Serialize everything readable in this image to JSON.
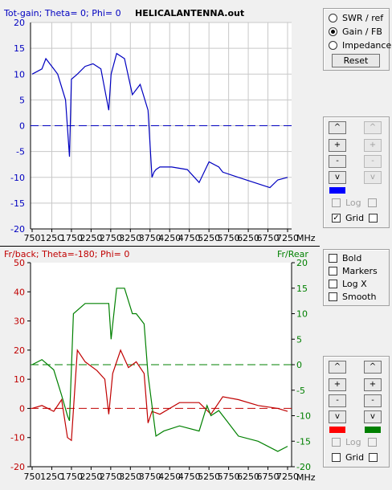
{
  "top_chart": {
    "left_title": "Tot-gain; Theta= 0; Phi= 0",
    "file_title": "HELICALANTENNA.out",
    "left_color": "#0000c0",
    "y_ticks": [
      "20",
      "15",
      "10",
      "5",
      "0",
      "-5",
      "-10",
      "-15",
      "-20"
    ],
    "x_ticks": [
      "750",
      "125C",
      "1750",
      "2250",
      "2750",
      "3250",
      "3750",
      "4250",
      "4750",
      "5250",
      "5750",
      "6250",
      "6750",
      "7250"
    ],
    "x_unit": "MHz"
  },
  "bottom_chart": {
    "left_title": "Fr/back; Theta=-180; Phi= 0",
    "right_title": "Fr/Rear",
    "left_color": "#c00000",
    "right_color": "#008000",
    "left_ticks": [
      "50",
      "40",
      "30",
      "20",
      "10",
      "0",
      "-10",
      "-20"
    ],
    "right_ticks": [
      "20",
      "15",
      "10",
      "5",
      "0",
      "-5",
      "-10",
      "-15",
      "-20"
    ],
    "x_ticks": [
      "750",
      "125C",
      "1750",
      "2250",
      "2750",
      "3250",
      "3750",
      "4250",
      "4750",
      "5250",
      "5750",
      "6250",
      "6750",
      "7250"
    ],
    "x_unit": "MHz"
  },
  "chart_data": [
    {
      "type": "line",
      "title": "HELICALANTENNA.out",
      "series": [
        {
          "name": "Tot-gain; Theta= 0; Phi= 0",
          "color": "#0000c0",
          "x": [
            750,
            1000,
            1100,
            1300,
            1400,
            1600,
            1700,
            1750,
            1900,
            2100,
            2300,
            2500,
            2700,
            2760,
            2900,
            3100,
            3300,
            3500,
            3700,
            3800,
            3850,
            3900,
            4000,
            4300,
            4700,
            5000,
            5250,
            5500,
            5600,
            6000,
            6400,
            6800,
            7000,
            7250
          ],
          "y": [
            10,
            11,
            13,
            11,
            10,
            5,
            -6,
            9,
            10,
            11.5,
            12,
            11,
            3,
            10,
            14,
            13,
            6,
            8,
            3,
            -10,
            -9,
            -8.5,
            -8,
            -8,
            -8.5,
            -11,
            -7,
            -8,
            -9,
            -10,
            -11,
            -12,
            -10.5,
            -10
          ]
        }
      ],
      "ylim": [
        -20,
        20
      ],
      "xlabel": "MHz",
      "grid": true
    },
    {
      "type": "line",
      "series": [
        {
          "name": "Fr/back; Theta=-180; Phi= 0",
          "color": "#c00000",
          "axis": "left",
          "x": [
            750,
            1000,
            1300,
            1500,
            1650,
            1750,
            1900,
            2100,
            2400,
            2600,
            2700,
            2800,
            3000,
            3200,
            3400,
            3600,
            3700,
            3800,
            4000,
            4500,
            5000,
            5300,
            5600,
            6000,
            6500,
            7000,
            7250
          ],
          "y": [
            0,
            1,
            -1,
            3,
            -10,
            -11,
            20,
            16,
            13,
            10,
            -2,
            12,
            20,
            14,
            16,
            12,
            -5,
            -1,
            -2,
            2,
            2,
            -2,
            4,
            3,
            1,
            0,
            -1
          ]
        },
        {
          "name": "Fr/Rear",
          "color": "#008000",
          "axis": "right",
          "x": [
            750,
            1000,
            1300,
            1500,
            1650,
            1700,
            1800,
            2100,
            2400,
            2700,
            2760,
            2900,
            3100,
            3300,
            3400,
            3600,
            3700,
            3800,
            3900,
            4100,
            4500,
            5000,
            5200,
            5300,
            5500,
            5700,
            6000,
            6500,
            7000,
            7250
          ],
          "y": [
            0,
            1,
            -1,
            -6,
            -10,
            -11,
            10,
            12,
            12,
            12,
            5,
            15,
            15,
            10,
            10,
            8,
            -2,
            -8,
            -14,
            -13,
            -12,
            -13,
            -8,
            -10,
            -9,
            -11,
            -14,
            -15,
            -17,
            -16
          ]
        }
      ],
      "ylim": [
        -20,
        50
      ],
      "y2lim": [
        -20,
        20
      ],
      "xlabel": "MHz",
      "grid": false
    }
  ],
  "panel1": {
    "swr_label": "SWR / ref",
    "gain_label": "Gain / FB",
    "imp_label": "Impedance",
    "reset_label": "Reset"
  },
  "panel2": {
    "up": "^",
    "plus": "+",
    "minus": "-",
    "down": "v",
    "swatch_color": "#0000ff",
    "log_label": "Log",
    "grid_label": "Grid"
  },
  "panel3": {
    "bold_label": "Bold",
    "markers_label": "Markers",
    "logx_label": "Log X",
    "smooth_label": "Smooth"
  },
  "panel4": {
    "up": "^",
    "plus": "+",
    "minus": "-",
    "down": "v",
    "left_swatch": "#ff0000",
    "right_swatch": "#008000",
    "log_label": "Log",
    "grid_label": "Grid"
  }
}
